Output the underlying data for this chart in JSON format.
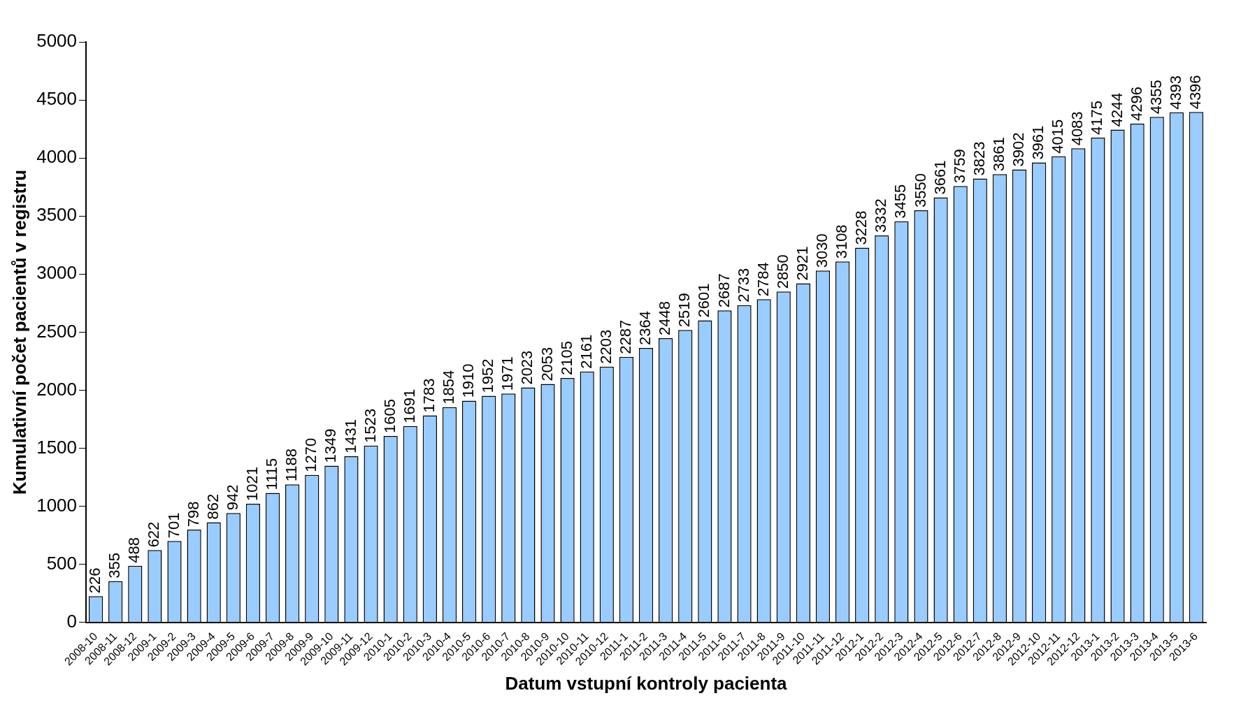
{
  "chart_data": {
    "type": "bar",
    "xlabel": "Datum vstupní kontroly pacienta",
    "ylabel": "Kumulativní počet pacientů v registru",
    "categories": [
      "2008-10",
      "2008-11",
      "2008-12",
      "2009-1",
      "2009-2",
      "2009-3",
      "2009-4",
      "2009-5",
      "2009-6",
      "2009-7",
      "2009-8",
      "2009-9",
      "2009-10",
      "2009-11",
      "2009-12",
      "2010-1",
      "2010-2",
      "2010-3",
      "2010-4",
      "2010-5",
      "2010-6",
      "2010-7",
      "2010-8",
      "2010-9",
      "2010-10",
      "2010-11",
      "2010-12",
      "2011-1",
      "2011-2",
      "2011-3",
      "2011-4",
      "2011-5",
      "2011-6",
      "2011-7",
      "2011-8",
      "2011-9",
      "2011-10",
      "2011-11",
      "2011-12",
      "2012-1",
      "2012-2",
      "2012-3",
      "2012-4",
      "2012-5",
      "2012-6",
      "2012-7",
      "2012-8",
      "2012-9",
      "2012-10",
      "2012-11",
      "2012-12",
      "2013-1",
      "2013-2",
      "2013-3",
      "2013-4",
      "2013-5",
      "2013-6"
    ],
    "values": [
      226,
      355,
      488,
      622,
      701,
      798,
      862,
      942,
      1021,
      1115,
      1188,
      1270,
      1349,
      1431,
      1523,
      1605,
      1691,
      1783,
      1854,
      1910,
      1952,
      1971,
      2023,
      2053,
      2105,
      2161,
      2203,
      2287,
      2364,
      2448,
      2519,
      2601,
      2687,
      2733,
      2784,
      2850,
      2921,
      3030,
      3108,
      3228,
      3332,
      3455,
      3550,
      3661,
      3759,
      3823,
      3861,
      3902,
      3961,
      4015,
      4083,
      4175,
      4244,
      4296,
      4355,
      4393,
      4396
    ],
    "color": "#99ccff",
    "ylim": [
      0,
      5000
    ],
    "yticks": [
      0,
      500,
      1000,
      1500,
      2000,
      2500,
      3000,
      3500,
      4000,
      4500,
      5000
    ],
    "grid": false,
    "legend": false,
    "data_labels": true
  }
}
